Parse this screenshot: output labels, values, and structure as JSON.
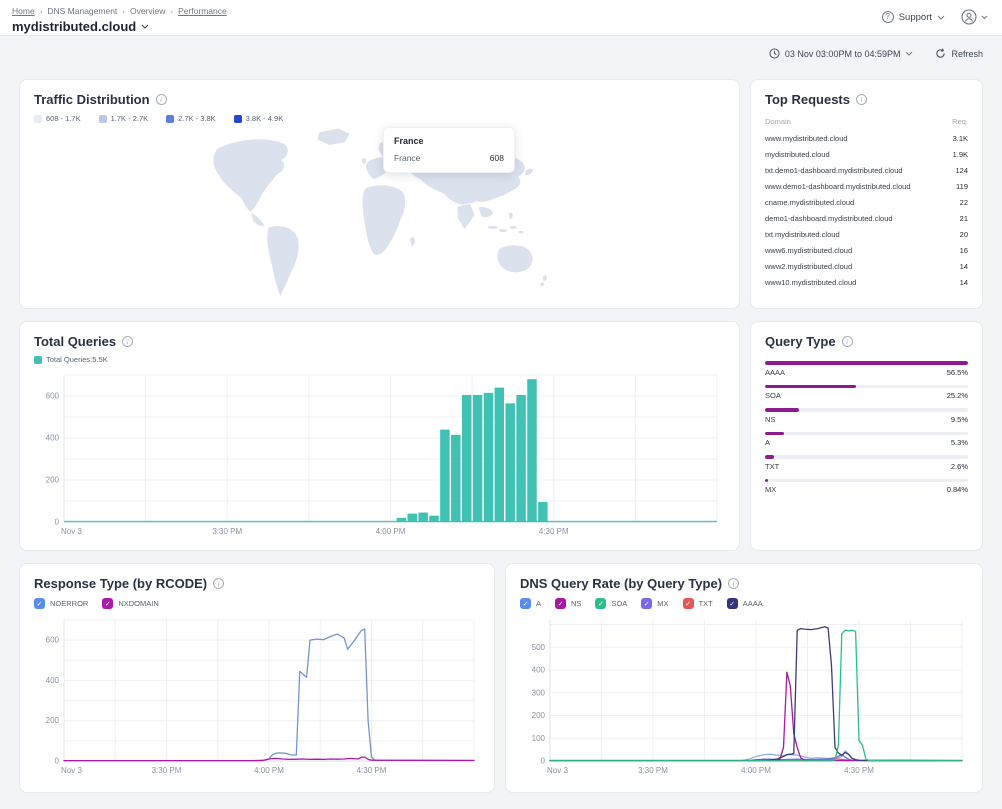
{
  "header": {
    "breadcrumb": [
      "Home",
      "DNS Management",
      "Overview",
      "Performance"
    ],
    "title": "mydistributed.cloud",
    "support_label": "Support",
    "support_icon": "question-circle",
    "account_icon": "user-circle"
  },
  "toolbar": {
    "date_range": "03 Nov 03:00PM to 04:59PM",
    "date_icon": "clock",
    "refresh_label": "Refresh",
    "refresh_icon": "refresh-arrows"
  },
  "traffic": {
    "title": "Traffic Distribution",
    "legend": [
      {
        "label": "608 - 1.7K",
        "color": "#e9ecf5"
      },
      {
        "label": "1.7K - 2.7K",
        "color": "#bcc8e4"
      },
      {
        "label": "2.7K - 3.8K",
        "color": "#5f7fe0"
      },
      {
        "label": "3.8K - 4.9K",
        "color": "#2547cb"
      }
    ],
    "tooltip": {
      "country": "France",
      "row_label": "France",
      "value": "608"
    },
    "map_fill": "#dce1ee"
  },
  "top_requests": {
    "title": "Top Requests",
    "columns": {
      "domain": "Domain",
      "req": "Req."
    },
    "rows": [
      {
        "domain": "www.mydistributed.cloud",
        "req": "3.1K"
      },
      {
        "domain": "mydistributed.cloud",
        "req": "1.9K"
      },
      {
        "domain": "txt.demo1-dashboard.mydistributed.cloud",
        "req": "124"
      },
      {
        "domain": "www.demo1-dashboard.mydistributed.cloud",
        "req": "119"
      },
      {
        "domain": "cname.mydistributed.cloud",
        "req": "22"
      },
      {
        "domain": "demo1-dashboard.mydistributed.cloud",
        "req": "21"
      },
      {
        "domain": "txt.mydistributed.cloud",
        "req": "20"
      },
      {
        "domain": "www6.mydistributed.cloud",
        "req": "16"
      },
      {
        "domain": "www2.mydistributed.cloud",
        "req": "14"
      },
      {
        "domain": "www10.mydistributed.cloud",
        "req": "14"
      }
    ]
  },
  "total_queries": {
    "title": "Total Queries",
    "legend_label": "Total Queries:5.5K",
    "legend_color": "#3fc2b3"
  },
  "query_type": {
    "title": "Query Type",
    "bar_color": "#8d1b8d",
    "items": [
      {
        "label": "AAAA",
        "pct": "56.5%",
        "frac": 100
      },
      {
        "label": "SOA",
        "pct": "25.2%",
        "frac": 44.6
      },
      {
        "label": "NS",
        "pct": "9.5%",
        "frac": 16.8
      },
      {
        "label": "A",
        "pct": "5.3%",
        "frac": 9.4
      },
      {
        "label": "TXT",
        "pct": "2.6%",
        "frac": 4.6
      },
      {
        "label": "MX",
        "pct": "0.84%",
        "frac": 1.6
      }
    ]
  },
  "response_type": {
    "title": "Response Type (by RCODE)",
    "legend": [
      {
        "label": "NOERROR",
        "color": "#5b8def",
        "check": "✓"
      },
      {
        "label": "NXDOMAIN",
        "color": "#ab18ab",
        "check": "✓"
      }
    ]
  },
  "dns_query_rate": {
    "title": "DNS Query Rate (by Query Type)",
    "legend": [
      {
        "label": "A",
        "color": "#5b8def",
        "check": "✓"
      },
      {
        "label": "NS",
        "color": "#a818a0",
        "check": "✓"
      },
      {
        "label": "SOA",
        "color": "#2ebe8e",
        "check": "✓"
      },
      {
        "label": "MX",
        "color": "#7a6ae0",
        "check": "✓"
      },
      {
        "label": "TXT",
        "color": "#e25757",
        "check": "✓"
      },
      {
        "label": "AAAA",
        "color": "#32337f",
        "check": "✓"
      }
    ]
  },
  "chart_data": [
    {
      "id": "total-queries",
      "type": "bar",
      "title": "Total Queries",
      "x_axis": "time (Nov 3, 3:00 PM - 5:00 PM)",
      "x_range_minutes": [
        0,
        120
      ],
      "x_tick_labels": {
        "0": "Nov 3",
        "30": "3:30 PM",
        "60": "4:00 PM",
        "90": "4:30 PM"
      },
      "x_grid_step": 15,
      "ylim": [
        0,
        700
      ],
      "y_labels": [
        0,
        200,
        400,
        600
      ],
      "y_grid_step": 100,
      "bar_color": "#3fc2b3",
      "bar_minutes_width": 2,
      "bars": [
        [
          61,
          20
        ],
        [
          63,
          40
        ],
        [
          65,
          45
        ],
        [
          67,
          30
        ],
        [
          69,
          440
        ],
        [
          71,
          415
        ],
        [
          73,
          605
        ],
        [
          75,
          605
        ],
        [
          77,
          615
        ],
        [
          79,
          640
        ],
        [
          81,
          565
        ],
        [
          83,
          605
        ],
        [
          85,
          680
        ],
        [
          87,
          95
        ]
      ]
    },
    {
      "id": "query-type",
      "type": "table",
      "title": "Query Type",
      "categories": [
        "AAAA",
        "SOA",
        "NS",
        "A",
        "TXT",
        "MX"
      ],
      "values_pct": [
        56.5,
        25.2,
        9.5,
        5.3,
        2.6,
        0.84
      ]
    },
    {
      "id": "response-type",
      "type": "line",
      "title": "Response Type (by RCODE)",
      "x_range_minutes": [
        0,
        120
      ],
      "x_tick_labels": {
        "0": "Nov 3",
        "30": "3:30 PM",
        "60": "4:00 PM",
        "90": "4:30 PM"
      },
      "x_grid_step": 15,
      "ylim": [
        0,
        700
      ],
      "y_labels": [
        0,
        200,
        400,
        600
      ],
      "y_grid_step": 100,
      "series": [
        {
          "name": "NOERROR",
          "color": "#7496cf",
          "points": [
            [
              0,
              2
            ],
            [
              55,
              2
            ],
            [
              59,
              5
            ],
            [
              60,
              10
            ],
            [
              61,
              32
            ],
            [
              62,
              38
            ],
            [
              63,
              40
            ],
            [
              65,
              38
            ],
            [
              66,
              32
            ],
            [
              67,
              30
            ],
            [
              68,
              30
            ],
            [
              69,
              445
            ],
            [
              70,
              430
            ],
            [
              71,
              415
            ],
            [
              72,
              600
            ],
            [
              74,
              605
            ],
            [
              76,
              602
            ],
            [
              78,
              618
            ],
            [
              80,
              630
            ],
            [
              82,
              610
            ],
            [
              83,
              555
            ],
            [
              85,
              598
            ],
            [
              87,
              648
            ],
            [
              88,
              655
            ],
            [
              89,
              200
            ],
            [
              90,
              20
            ],
            [
              91,
              3
            ],
            [
              120,
              2
            ]
          ]
        },
        {
          "name": "NXDOMAIN",
          "color": "#ab18ab",
          "points": [
            [
              0,
              2
            ],
            [
              58,
              2
            ],
            [
              60,
              10
            ],
            [
              62,
              13
            ],
            [
              64,
              10
            ],
            [
              66,
              8
            ],
            [
              68,
              9
            ],
            [
              70,
              10
            ],
            [
              72,
              8
            ],
            [
              74,
              9
            ],
            [
              76,
              8
            ],
            [
              78,
              10
            ],
            [
              80,
              9
            ],
            [
              82,
              10
            ],
            [
              84,
              13
            ],
            [
              86,
              10
            ],
            [
              87,
              18
            ],
            [
              88,
              20
            ],
            [
              89,
              8
            ],
            [
              90,
              4
            ],
            [
              120,
              3
            ]
          ]
        }
      ]
    },
    {
      "id": "dns-query-rate",
      "type": "line",
      "title": "DNS Query Rate (by Query Type)",
      "x_range_minutes": [
        0,
        120
      ],
      "x_tick_labels": {
        "0": "Nov 3",
        "30": "3:30 PM",
        "60": "4:00 PM",
        "90": "4:30 PM"
      },
      "x_grid_step": 15,
      "ylim": [
        0,
        620
      ],
      "y_labels": [
        0,
        100,
        200,
        300,
        400,
        500
      ],
      "y_grid_step": 100,
      "series": [
        {
          "name": "A",
          "color": "#8fb0e4",
          "points": [
            [
              0,
              2
            ],
            [
              56,
              2
            ],
            [
              58,
              8
            ],
            [
              60,
              20
            ],
            [
              62,
              27
            ],
            [
              64,
              30
            ],
            [
              66,
              26
            ],
            [
              68,
              24
            ],
            [
              70,
              28
            ],
            [
              72,
              26
            ],
            [
              74,
              18
            ],
            [
              76,
              12
            ],
            [
              78,
              14
            ],
            [
              80,
              12
            ],
            [
              82,
              10
            ],
            [
              84,
              14
            ],
            [
              85,
              20
            ],
            [
              86,
              45
            ],
            [
              87,
              30
            ],
            [
              88,
              12
            ],
            [
              90,
              4
            ],
            [
              120,
              2
            ]
          ]
        },
        {
          "name": "TXT",
          "color": "#e25757",
          "points": [
            [
              0,
              1
            ],
            [
              60,
              1
            ],
            [
              62,
              8
            ],
            [
              64,
              6
            ],
            [
              66,
              4
            ],
            [
              70,
              3
            ],
            [
              80,
              3
            ],
            [
              83,
              9
            ],
            [
              85,
              7
            ],
            [
              87,
              4
            ],
            [
              90,
              2
            ],
            [
              120,
              1
            ]
          ]
        },
        {
          "name": "MX",
          "color": "#7a6ae0",
          "points": [
            [
              0,
              1
            ],
            [
              58,
              1
            ],
            [
              60,
              6
            ],
            [
              64,
              8
            ],
            [
              68,
              6
            ],
            [
              72,
              8
            ],
            [
              76,
              6
            ],
            [
              80,
              8
            ],
            [
              83,
              14
            ],
            [
              85,
              28
            ],
            [
              86,
              16
            ],
            [
              87,
              8
            ],
            [
              88,
              4
            ],
            [
              90,
              2
            ],
            [
              120,
              1
            ]
          ]
        },
        {
          "name": "NS",
          "color": "#a818a0",
          "points": [
            [
              0,
              1
            ],
            [
              64,
              1
            ],
            [
              66,
              3
            ],
            [
              67,
              8
            ],
            [
              68,
              60
            ],
            [
              69,
              390
            ],
            [
              70,
              330
            ],
            [
              71,
              120
            ],
            [
              72,
              60
            ],
            [
              73,
              15
            ],
            [
              74,
              4
            ],
            [
              76,
              2
            ],
            [
              120,
              1
            ]
          ]
        },
        {
          "name": "AAAA",
          "color": "#3d3e78",
          "points": [
            [
              0,
              2
            ],
            [
              60,
              2
            ],
            [
              64,
              4
            ],
            [
              66,
              8
            ],
            [
              68,
              20
            ],
            [
              69,
              28
            ],
            [
              70,
              30
            ],
            [
              71,
              32
            ],
            [
              72,
              575
            ],
            [
              73,
              582
            ],
            [
              74,
              580
            ],
            [
              76,
              578
            ],
            [
              78,
              582
            ],
            [
              80,
              590
            ],
            [
              81,
              585
            ],
            [
              82,
              420
            ],
            [
              83,
              60
            ],
            [
              84,
              35
            ],
            [
              85,
              25
            ],
            [
              86,
              38
            ],
            [
              87,
              28
            ],
            [
              88,
              12
            ],
            [
              89,
              5
            ],
            [
              90,
              3
            ],
            [
              120,
              2
            ]
          ]
        },
        {
          "name": "SOA",
          "color": "#2ebe8e",
          "points": [
            [
              0,
              1
            ],
            [
              82,
              1
            ],
            [
              83,
              5
            ],
            [
              84,
              70
            ],
            [
              85,
              560
            ],
            [
              86,
              575
            ],
            [
              87,
              572
            ],
            [
              88,
              575
            ],
            [
              89,
              570
            ],
            [
              90,
              90
            ],
            [
              91,
              70
            ],
            [
              92,
              8
            ],
            [
              93,
              2
            ],
            [
              120,
              1
            ]
          ]
        }
      ]
    }
  ]
}
